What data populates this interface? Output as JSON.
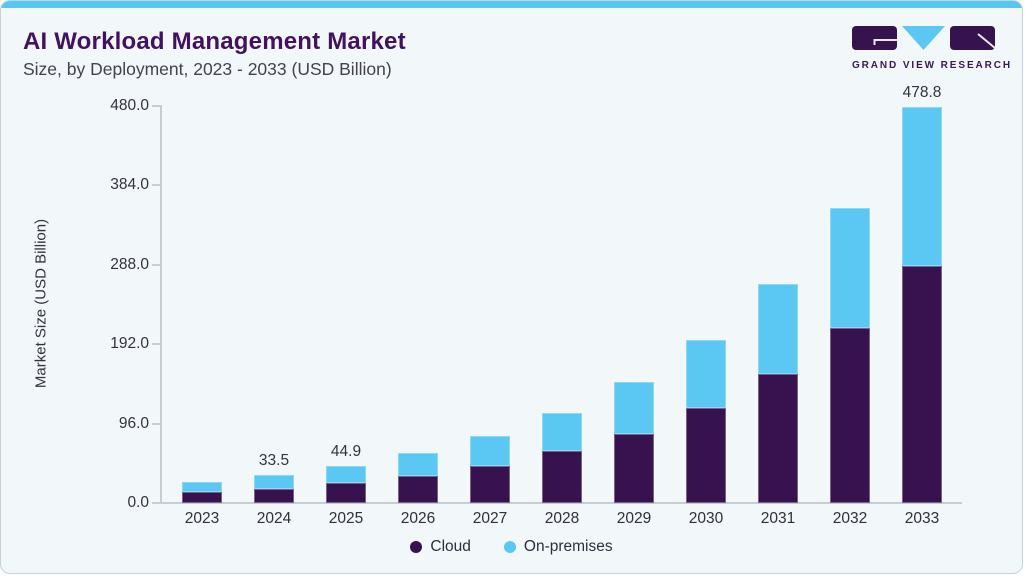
{
  "header": {
    "title": "AI Workload Management Market",
    "subtitle": "Size, by Deployment, 2023 - 2033 (USD Billion)"
  },
  "logo": {
    "brand": "GRAND VIEW RESEARCH"
  },
  "chart_data": {
    "type": "bar",
    "stacked": true,
    "title": "AI Workload Management Market Size, by Deployment, 2023 - 2033 (USD Billion)",
    "ylabel": "Market Size (USD Billion)",
    "xlabel": "",
    "ylim": [
      0,
      480
    ],
    "ytick_values": [
      0,
      96,
      192,
      288,
      384,
      480
    ],
    "ytick_labels": [
      "0.0",
      "96.0",
      "192.0",
      "288.0",
      "384.0",
      "480.0"
    ],
    "grid": false,
    "legend_position": "bottom",
    "categories": [
      "2023",
      "2024",
      "2025",
      "2026",
      "2027",
      "2028",
      "2029",
      "2030",
      "2031",
      "2032",
      "2033"
    ],
    "series": [
      {
        "name": "Cloud",
        "color": "#36134E",
        "values": [
          13.1,
          17.2,
          24.1,
          33.1,
          44.7,
          62.3,
          83.5,
          114.6,
          155.6,
          212.1,
          286.3
        ]
      },
      {
        "name": "On-premises",
        "color": "#5AC8F3",
        "values": [
          12.0,
          16.3,
          20.8,
          27.3,
          36.5,
          46.8,
          63.2,
          82.6,
          109.5,
          144.3,
          192.5
        ]
      }
    ],
    "totals": [
      25.1,
      33.5,
      44.9,
      60.4,
      81.2,
      109.1,
      146.7,
      197.2,
      265.1,
      356.4,
      478.8
    ],
    "shown_total_labels": {
      "2024": "33.5",
      "2025": "44.9",
      "2033": "478.8"
    }
  },
  "colors": {
    "card_background": "#F2F7FA",
    "card_border": "#C6D2DB",
    "top_accent": "#55C8F1",
    "title_text": "#421163",
    "subtitle_text": "#45414F",
    "axis_line": "#C7CDD4",
    "tick_text": "#33323C",
    "cloud": "#36134E",
    "on_premises": "#5AC8F3"
  }
}
